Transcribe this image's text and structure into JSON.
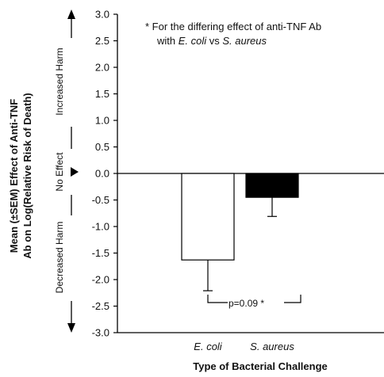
{
  "chart_data": {
    "type": "bar",
    "categories": [
      "E. coli",
      "S. aureus"
    ],
    "values": [
      -1.63,
      -0.45
    ],
    "errors": [
      0.58,
      0.36
    ],
    "bar_colors": [
      "#ffffff",
      "#000000"
    ],
    "ylim": [
      -3.0,
      3.0
    ],
    "yticks": [
      "3.0",
      "2.5",
      "2.0",
      "1.5",
      "1.0",
      "0.5",
      "0.0",
      "-0.5",
      "-1.0",
      "-1.5",
      "-2.0",
      "-2.5",
      "-3.0"
    ],
    "ylabel_line1": "Mean (±SEM) Effect of Anti-TNF",
    "ylabel_line2": "Ab on Log(Relative Risk of Death)",
    "xlabel": "Type of Bacterial Challenge",
    "side_labels": {
      "harm_up": "Increased Harm",
      "no_effect": "No Effect",
      "harm_down": "Decreased Harm"
    },
    "annotation": {
      "line1": "* For the differing effect of anti-TNF Ab",
      "line2_prefix": "with ",
      "line2_organism1": "E. coli",
      "line2_mid": " vs ",
      "line2_organism2": "S. aureus"
    },
    "pvalue_label": "p=0.09 *"
  }
}
